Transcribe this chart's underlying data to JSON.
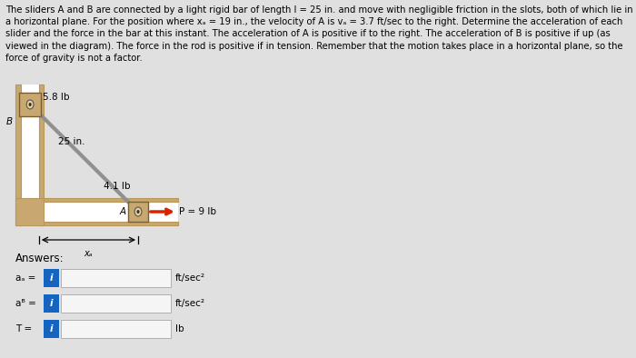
{
  "bg_color": "#e0e0e0",
  "title_text": "The sliders A and B are connected by a light rigid bar of length l = 25 in. and move with negligible friction in the slots, both of which lie in\na horizontal plane. For the position where xₐ = 19 in., the velocity of A is vₐ = 3.7 ft/sec to the right. Determine the acceleration of each\nslider and the force in the bar at this instant. The acceleration of A is positive if to the right. The acceleration of B is positive if up (as\nviewed in the diagram). The force in the rod is positive if in tension. Remember that the motion takes place in a horizontal plane, so the\nforce of gravity is not a factor.",
  "title_fontsize": 7.2,
  "diagram": {
    "weight_b_label": "5.8 lb",
    "bar_label": "25 in.",
    "force_bar_label": "4.1 lb",
    "force_p_label": "P = 9 lb",
    "xa_label": "xₐ",
    "b_label": "B",
    "a_label": "A",
    "wall_face": "#c8a870",
    "wall_dark": "#b8985a",
    "slider_face": "#c8a870",
    "slider_edge": "#7a6030",
    "bar_color": "#909090",
    "arrow_red": "#dd2200",
    "slot_bg": "#f0ece0"
  },
  "answers_label": "Answers:",
  "rows": [
    {
      "label": "aₐ =",
      "unit": "ft/sec²"
    },
    {
      "label": "aᴮ =",
      "unit": "ft/sec²"
    },
    {
      "label": "T =",
      "unit": "lb"
    }
  ],
  "box_color": "#1565c0",
  "box_text": "i",
  "input_bg": "#f5f5f5",
  "input_border": "#b0b0b0"
}
